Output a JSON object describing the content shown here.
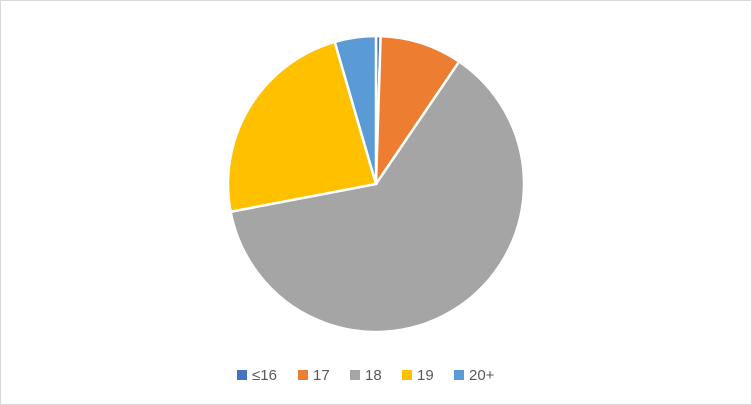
{
  "chart_data": {
    "type": "pie",
    "categories": [
      "≤16",
      "17",
      "18",
      "19",
      "20+"
    ],
    "values": [
      0.5,
      9,
      62.5,
      23.5,
      4.5
    ],
    "colors": [
      "#4472c4",
      "#ed7d31",
      "#a5a5a5",
      "#ffc000",
      "#5b9bd5"
    ],
    "legend": "bottom"
  }
}
